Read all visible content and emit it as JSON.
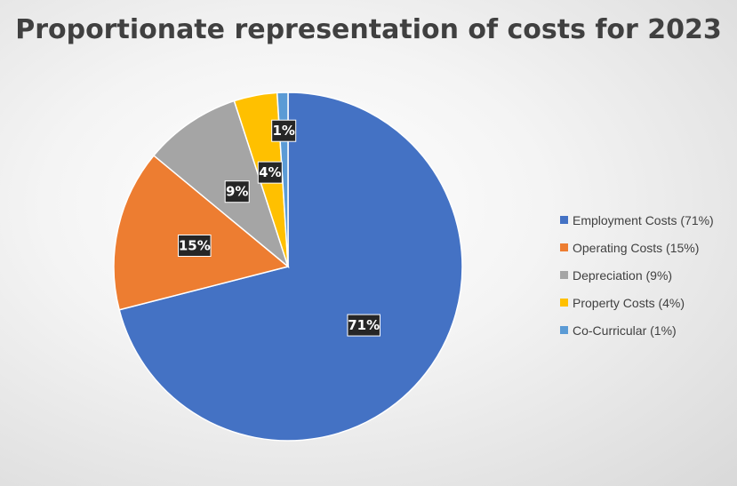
{
  "chart_data": {
    "type": "pie",
    "title": "Proportionate representation of costs for 2023",
    "categories": [
      "Employment Costs",
      "Operating Costs",
      "Depreciation",
      "Property Costs",
      "Co-Curricular"
    ],
    "values": [
      71,
      15,
      9,
      4,
      1
    ],
    "data_labels": [
      "71%",
      "15%",
      "9%",
      "4%",
      "1%"
    ],
    "legend_labels": [
      "Employment Costs (71%)",
      "Operating Costs (15%)",
      "Depreciation (9%)",
      "Property Costs (4%)",
      "Co-Curricular (1%)"
    ],
    "colors": [
      "#4472C4",
      "#ED7D31",
      "#A5A5A5",
      "#FFC000",
      "#5B9BD5"
    ],
    "legend_position": "right"
  }
}
